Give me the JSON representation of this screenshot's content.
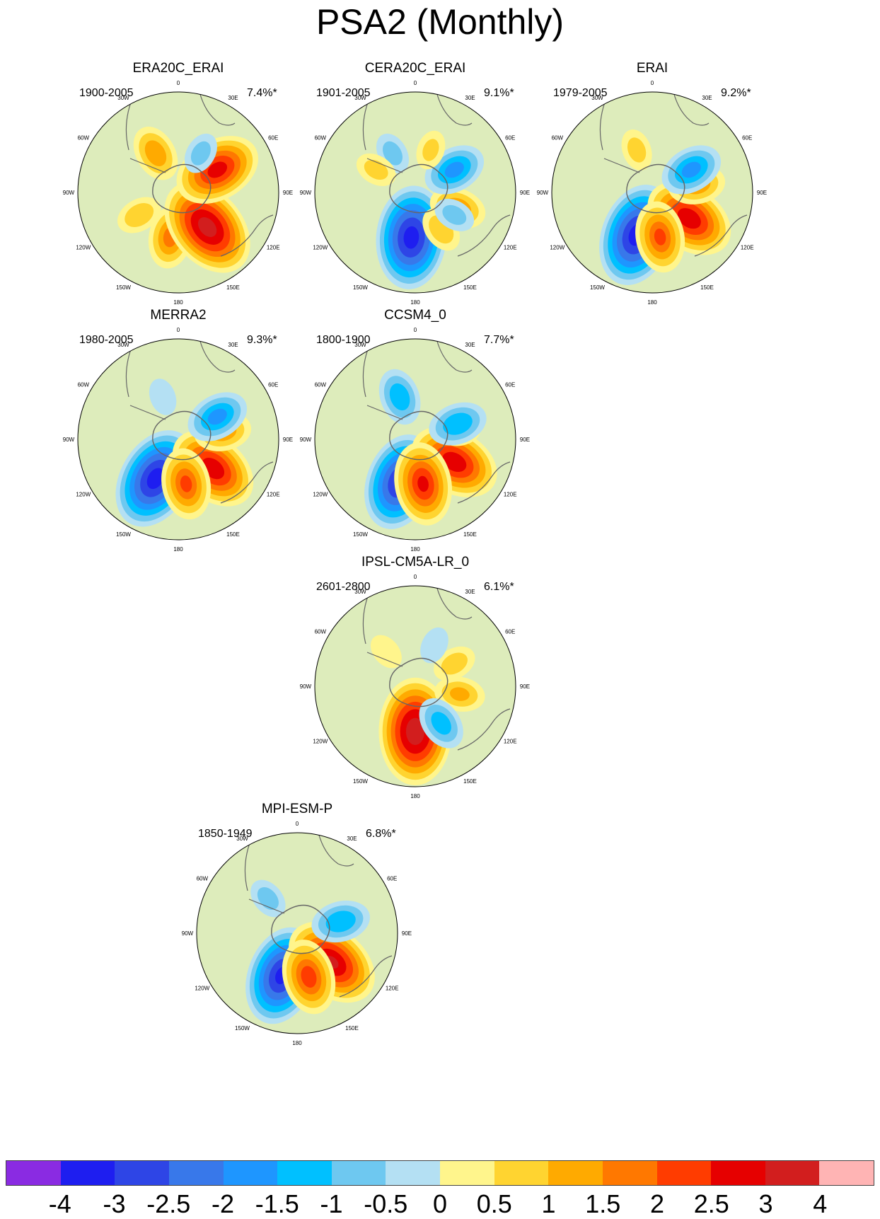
{
  "title": "PSA2 (Monthly)",
  "axis_labels": [
    "0",
    "30E",
    "60E",
    "90E",
    "120E",
    "150E",
    "180",
    "150W",
    "120W",
    "90W",
    "60W",
    "30W"
  ],
  "panels": [
    {
      "name": "ERA20C_ERAI",
      "period": "1900-2005",
      "percent": "7.4%*",
      "blobs": [
        [
          150,
          -1.5
        ],
        [
          190,
          1.8
        ],
        [
          140,
          3.8
        ],
        [
          60,
          3.0
        ],
        [
          30,
          -0.8
        ],
        [
          240,
          1.0
        ],
        [
          330,
          1.5
        ]
      ]
    },
    {
      "name": "CERA20C_ERAI",
      "period": "1901-2005",
      "percent": "9.1%*",
      "blobs": [
        [
          185,
          -3.8
        ],
        [
          110,
          1.5
        ],
        [
          145,
          1.0
        ],
        [
          60,
          -1.8
        ],
        [
          120,
          -0.8
        ],
        [
          330,
          -0.8
        ],
        [
          300,
          0.8
        ],
        [
          20,
          0.7
        ]
      ]
    },
    {
      "name": "ERAI",
      "period": "1979-2005",
      "percent": "9.2%*",
      "blobs": [
        [
          200,
          -3.8
        ],
        [
          125,
          3.2
        ],
        [
          80,
          1.5
        ],
        [
          60,
          -1.8
        ],
        [
          170,
          2.2
        ],
        [
          340,
          0.8
        ]
      ]
    },
    {
      "name": "MERRA2",
      "period": "1980-2005",
      "percent": "9.3%*",
      "blobs": [
        [
          210,
          -3.8
        ],
        [
          130,
          3.2
        ],
        [
          80,
          1.5
        ],
        [
          60,
          -1.8
        ],
        [
          170,
          2.2
        ],
        [
          340,
          -0.6
        ]
      ]
    },
    {
      "name": "CCSM4_0",
      "period": "1800-1900",
      "percent": "7.7%*",
      "blobs": [
        [
          200,
          -3.5
        ],
        [
          120,
          3.2
        ],
        [
          80,
          0.8
        ],
        [
          70,
          -1.6
        ],
        [
          170,
          2.8
        ],
        [
          340,
          -1.5
        ]
      ]
    },
    {
      "name": "IPSL-CM5A-LR_0",
      "period": "2601-2800",
      "percent": "6.1%*",
      "blobs": [
        [
          180,
          4.0
        ],
        [
          100,
          1.2
        ],
        [
          145,
          -1.4
        ],
        [
          60,
          0.9
        ],
        [
          25,
          -0.6
        ],
        [
          320,
          0.6
        ]
      ]
    },
    {
      "name": "MPI-ESM-P",
      "period": "1850-1949",
      "percent": "6.8%*",
      "blobs": [
        [
          200,
          -3.6
        ],
        [
          130,
          3.5
        ],
        [
          75,
          -1.6
        ],
        [
          165,
          2.4
        ],
        [
          320,
          -0.8
        ]
      ]
    }
  ],
  "colorbar": {
    "colors": [
      "#8a2be2",
      "#1e1ef0",
      "#2e45e6",
      "#3878ea",
      "#1e96ff",
      "#00c0ff",
      "#6ec8f0",
      "#b4e0f3",
      "#fff58c",
      "#ffd430",
      "#ffaa00",
      "#ff7800",
      "#ff3c00",
      "#e60000",
      "#d21e1e",
      "#ffb4b4"
    ],
    "labels": [
      "-4",
      "-3",
      "-2.5",
      "-2",
      "-1.5",
      "-1",
      "-0.5",
      "0",
      "0.5",
      "1",
      "1.5",
      "2",
      "2.5",
      "3",
      "4"
    ],
    "levels": [
      -4,
      -3,
      -2.5,
      -2,
      -1.5,
      -1,
      -0.5,
      0,
      0.5,
      1,
      1.5,
      2,
      2.5,
      3,
      4
    ]
  }
}
